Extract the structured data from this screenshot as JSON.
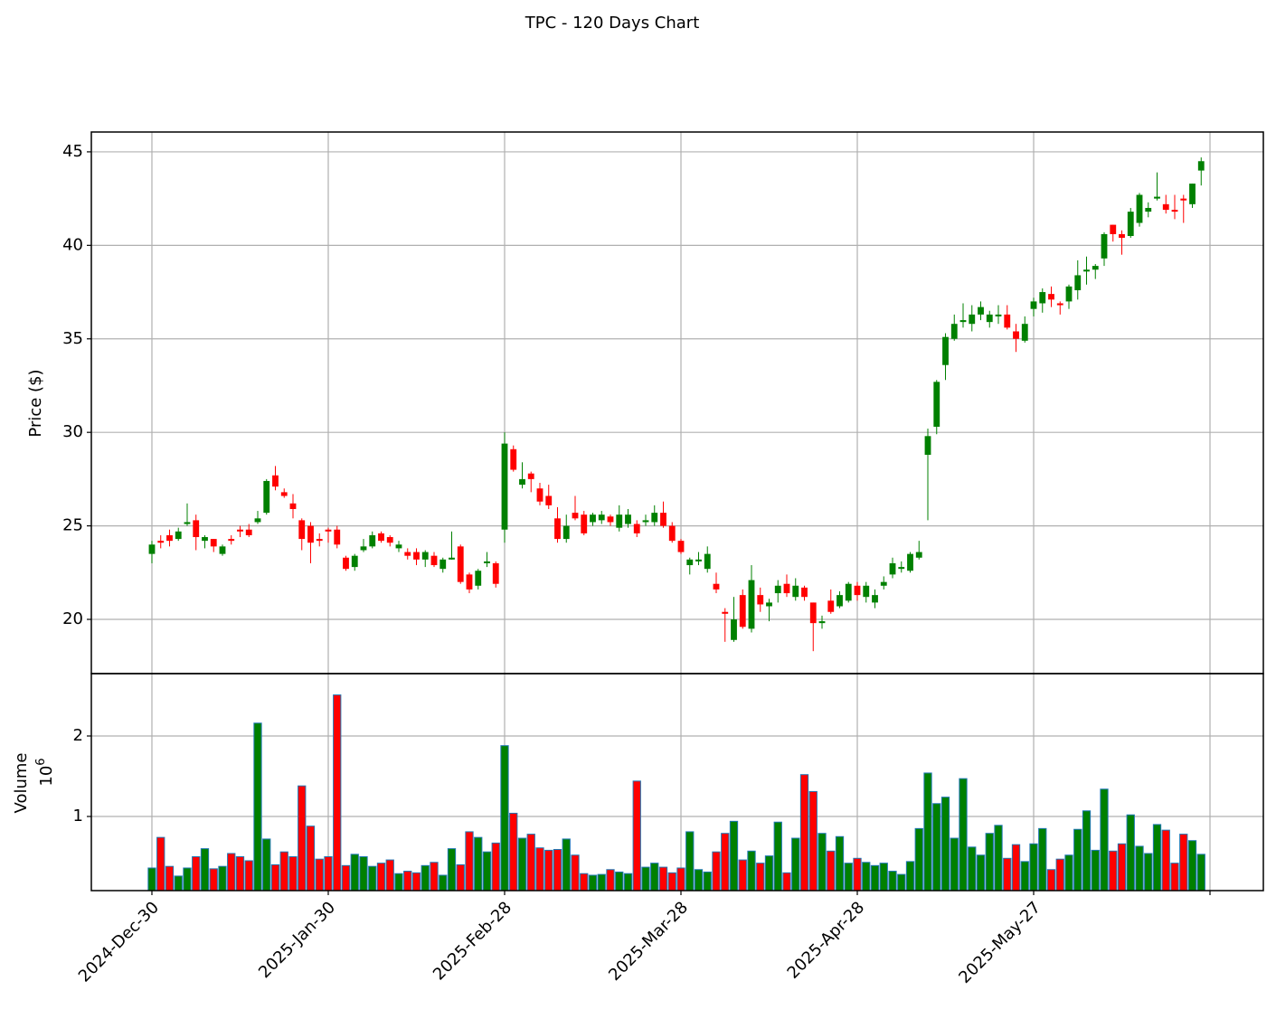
{
  "chart_data": {
    "type": "candlestick",
    "title": "TPC - 120 Days Chart",
    "ylabel": "Price ($)",
    "volume_label": "Volume",
    "volume_offset": {
      "base": "10",
      "exponent": "6"
    },
    "up_color": "#008000",
    "down_color": "#ff0000",
    "volume_edge_color": "#1f77b4",
    "grid": true,
    "categories": [
      "2024-Dec-30",
      null,
      null,
      null,
      null,
      null,
      null,
      null,
      null,
      null,
      null,
      null,
      null,
      null,
      null,
      null,
      null,
      null,
      null,
      null,
      "2025-Jan-30",
      null,
      null,
      null,
      null,
      null,
      null,
      null,
      null,
      null,
      null,
      null,
      null,
      null,
      null,
      null,
      null,
      null,
      null,
      null,
      "2025-Feb-28",
      null,
      null,
      null,
      null,
      null,
      null,
      null,
      null,
      null,
      null,
      null,
      null,
      null,
      null,
      null,
      null,
      null,
      null,
      null,
      "2025-Mar-28",
      null,
      null,
      null,
      null,
      null,
      null,
      null,
      null,
      null,
      null,
      null,
      null,
      null,
      null,
      null,
      null,
      null,
      null,
      null,
      "2025-Apr-28",
      null,
      null,
      null,
      null,
      null,
      null,
      null,
      null,
      null,
      null,
      null,
      null,
      null,
      null,
      null,
      null,
      null,
      null,
      null,
      "2025-May-27",
      null,
      null,
      null,
      null,
      null,
      null,
      null,
      null,
      null,
      null,
      null,
      null,
      null,
      null,
      null,
      null,
      null,
      null,
      null
    ],
    "xlim": [
      -6.87,
      126.05
    ],
    "xticks": [
      0,
      20,
      40,
      60,
      80,
      100,
      120
    ],
    "ylim": [
      17.1,
      46.06
    ],
    "yticks": [
      20,
      25,
      30,
      35,
      40,
      45
    ],
    "volume_ylim": [
      0.079,
      2.775
    ],
    "volume_yticks": [
      1,
      2
    ],
    "open": [
      23.5,
      24.2,
      24.5,
      24.3,
      25.1,
      25.3,
      24.2,
      24.3,
      23.5,
      24.3,
      24.8,
      24.8,
      25.2,
      25.7,
      27.7,
      26.8,
      26.2,
      25.3,
      25.0,
      24.3,
      24.8,
      24.8,
      23.3,
      22.8,
      23.7,
      23.9,
      24.6,
      24.4,
      23.8,
      23.6,
      23.6,
      23.2,
      23.4,
      22.7,
      23.2,
      23.9,
      22.4,
      21.8,
      23.0,
      23.0,
      24.8,
      29.1,
      27.2,
      27.8,
      27.0,
      26.6,
      25.4,
      24.3,
      25.7,
      25.6,
      25.2,
      25.3,
      25.5,
      24.9,
      25.1,
      25.1,
      25.2,
      25.2,
      25.7,
      25.0,
      24.2,
      22.9,
      23.1,
      22.7,
      21.9,
      20.4,
      18.9,
      21.3,
      19.5,
      21.3,
      20.7,
      21.4,
      21.9,
      21.2,
      21.7,
      20.9,
      19.8,
      21.0,
      20.7,
      21.0,
      21.8,
      21.2,
      20.9,
      21.8,
      22.4,
      22.7,
      22.6,
      23.3,
      28.8,
      30.3,
      33.6,
      35.0,
      35.9,
      35.8,
      36.3,
      35.9,
      36.2,
      36.3,
      35.4,
      34.9,
      36.6,
      36.9,
      37.4,
      36.9,
      37.0,
      37.6,
      38.6,
      38.7,
      39.3,
      41.1,
      40.6,
      40.5,
      41.2,
      41.8,
      42.5,
      42.2,
      41.9,
      42.5,
      42.2,
      44.0
    ],
    "high": [
      24.2,
      24.5,
      24.8,
      24.9,
      26.2,
      25.6,
      24.5,
      24.3,
      24.0,
      24.5,
      25.0,
      25.1,
      25.8,
      27.5,
      28.2,
      27.0,
      26.7,
      25.4,
      25.2,
      24.6,
      24.9,
      25.0,
      23.4,
      23.5,
      24.3,
      24.7,
      24.7,
      24.5,
      24.2,
      23.8,
      23.8,
      23.7,
      23.6,
      23.3,
      24.7,
      24.0,
      22.5,
      22.7,
      23.6,
      23.1,
      30.0,
      29.3,
      28.4,
      27.9,
      27.3,
      27.2,
      26.0,
      25.6,
      26.6,
      25.8,
      25.7,
      25.8,
      25.6,
      26.1,
      25.9,
      25.3,
      25.6,
      26.1,
      26.3,
      25.2,
      24.3,
      23.3,
      23.6,
      23.9,
      22.5,
      20.6,
      21.2,
      21.6,
      22.9,
      21.7,
      21.1,
      22.1,
      22.4,
      22.2,
      21.8,
      20.9,
      20.2,
      21.6,
      21.5,
      22.0,
      22.0,
      22.0,
      21.6,
      22.3,
      23.3,
      23.1,
      23.6,
      24.2,
      30.2,
      32.8,
      35.3,
      36.3,
      36.9,
      36.8,
      37.0,
      36.5,
      36.8,
      36.8,
      35.8,
      36.2,
      37.2,
      37.7,
      37.8,
      37.0,
      37.9,
      39.2,
      39.4,
      39.0,
      40.7,
      41.1,
      40.8,
      42.0,
      42.8,
      42.3,
      43.9,
      42.7,
      42.7,
      42.7,
      43.3,
      44.7
    ],
    "low": [
      23.0,
      23.8,
      23.9,
      24.2,
      25.0,
      23.7,
      23.8,
      23.6,
      23.4,
      24.0,
      24.4,
      24.4,
      25.1,
      25.6,
      26.9,
      26.5,
      25.4,
      23.7,
      23.0,
      23.9,
      24.1,
      23.8,
      22.6,
      22.6,
      23.6,
      23.8,
      24.1,
      23.9,
      23.6,
      23.2,
      22.9,
      22.8,
      22.8,
      22.5,
      23.2,
      21.9,
      21.4,
      21.6,
      22.8,
      21.7,
      24.1,
      27.9,
      27.0,
      26.8,
      26.1,
      25.9,
      24.1,
      24.1,
      25.3,
      24.5,
      25.0,
      25.1,
      25.0,
      24.7,
      24.9,
      24.4,
      25.0,
      25.0,
      24.9,
      24.1,
      23.5,
      22.4,
      22.9,
      22.5,
      21.4,
      18.8,
      18.8,
      19.5,
      19.3,
      20.4,
      19.9,
      20.9,
      21.2,
      21.0,
      21.0,
      18.3,
      19.5,
      20.3,
      20.6,
      20.9,
      21.0,
      20.9,
      20.6,
      21.6,
      22.2,
      22.5,
      22.5,
      23.2,
      25.3,
      29.9,
      32.8,
      34.9,
      35.6,
      35.4,
      36.0,
      35.6,
      35.8,
      35.5,
      34.3,
      34.8,
      36.2,
      36.4,
      36.7,
      36.3,
      36.6,
      37.1,
      37.9,
      38.2,
      38.9,
      40.2,
      39.5,
      40.4,
      41.0,
      41.5,
      42.4,
      41.7,
      41.4,
      41.2,
      42.0,
      43.2
    ],
    "close": [
      24.0,
      24.1,
      24.2,
      24.7,
      25.2,
      24.4,
      24.4,
      23.9,
      23.9,
      24.2,
      24.7,
      24.5,
      25.4,
      27.4,
      27.1,
      26.6,
      25.9,
      24.3,
      24.1,
      24.2,
      24.7,
      24.0,
      22.7,
      23.4,
      23.9,
      24.5,
      24.2,
      24.1,
      24.0,
      23.4,
      23.2,
      23.6,
      22.9,
      23.2,
      23.3,
      22.0,
      21.6,
      22.6,
      23.1,
      21.9,
      29.4,
      28.0,
      27.5,
      27.5,
      26.3,
      26.1,
      24.3,
      25.0,
      25.4,
      24.6,
      25.6,
      25.6,
      25.2,
      25.6,
      25.6,
      24.6,
      25.3,
      25.7,
      25.0,
      24.2,
      23.6,
      23.2,
      23.2,
      23.5,
      21.6,
      20.3,
      20.0,
      19.6,
      22.1,
      20.8,
      20.9,
      21.8,
      21.4,
      21.8,
      21.2,
      19.8,
      19.9,
      20.4,
      21.3,
      21.9,
      21.3,
      21.8,
      21.3,
      22.0,
      23.0,
      22.8,
      23.5,
      23.6,
      29.8,
      32.7,
      35.1,
      35.8,
      36.0,
      36.3,
      36.7,
      36.3,
      36.3,
      35.6,
      35.0,
      35.8,
      37.0,
      37.5,
      37.1,
      36.8,
      37.8,
      38.4,
      38.7,
      38.9,
      40.6,
      40.6,
      40.4,
      41.8,
      42.7,
      42.0,
      42.6,
      41.9,
      41.8,
      42.4,
      43.3,
      44.5
    ],
    "volume": [
      0.36,
      0.74,
      0.38,
      0.26,
      0.36,
      0.5,
      0.6,
      0.35,
      0.38,
      0.54,
      0.5,
      0.45,
      2.16,
      0.72,
      0.4,
      0.56,
      0.5,
      1.38,
      0.88,
      0.47,
      0.5,
      2.51,
      0.39,
      0.53,
      0.5,
      0.38,
      0.42,
      0.46,
      0.29,
      0.32,
      0.3,
      0.39,
      0.43,
      0.27,
      0.6,
      0.4,
      0.81,
      0.74,
      0.56,
      0.67,
      1.88,
      1.04,
      0.73,
      0.78,
      0.61,
      0.58,
      0.59,
      0.72,
      0.52,
      0.29,
      0.27,
      0.28,
      0.34,
      0.31,
      0.29,
      1.44,
      0.37,
      0.42,
      0.37,
      0.3,
      0.36,
      0.81,
      0.34,
      0.31,
      0.56,
      0.79,
      0.94,
      0.46,
      0.57,
      0.42,
      0.51,
      0.93,
      0.3,
      0.73,
      1.52,
      1.31,
      0.79,
      0.57,
      0.75,
      0.42,
      0.48,
      0.43,
      0.39,
      0.42,
      0.32,
      0.28,
      0.44,
      0.85,
      1.54,
      1.16,
      1.24,
      0.73,
      1.47,
      0.62,
      0.52,
      0.79,
      0.89,
      0.48,
      0.65,
      0.44,
      0.66,
      0.85,
      0.34,
      0.47,
      0.52,
      0.84,
      1.07,
      0.58,
      1.34,
      0.57,
      0.66,
      1.02,
      0.63,
      0.54,
      0.9,
      0.83,
      0.42,
      0.78,
      0.7,
      0.53
    ]
  }
}
